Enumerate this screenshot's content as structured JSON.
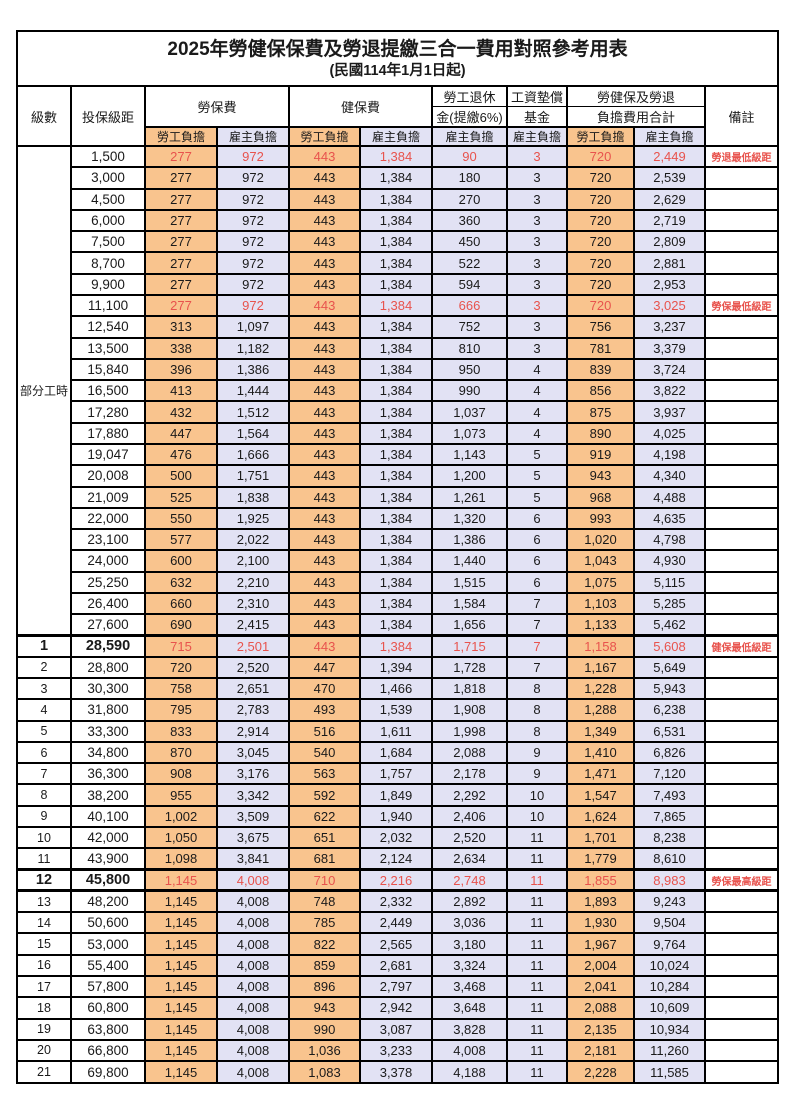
{
  "title": {
    "line1": "2025年勞健保保費及勞退提繳三合一費用對照參考用表",
    "line2": "(民國114年1月1日起)"
  },
  "header": {
    "level": "級數",
    "bracket": "投保級距",
    "labor": "勞保費",
    "health": "健保費",
    "pension_line1": "勞工退休",
    "pension_line2": "金(提繳6%)",
    "wage_fund_line1": "工資墊償",
    "wage_fund_line2": "基金",
    "total_line1": "勞健保及勞退",
    "total_line2": "負擔費用合計",
    "note": "備註",
    "employee": "勞工負擔",
    "employer": "雇主負擔"
  },
  "colors": {
    "employee_bg": "#F9C48E",
    "employer_bg": "#E2E2F4",
    "highlight_text": "#E8534D",
    "border": "#000000"
  },
  "part_time_label": "部分工時",
  "part_time_span": 23,
  "rows": [
    {
      "level": "",
      "bracket": "1,500",
      "labor_emp": "277",
      "labor_er": "972",
      "health_emp": "443",
      "health_er": "1,384",
      "pension_er": "90",
      "fund_er": "3",
      "total_emp": "720",
      "total_er": "2,449",
      "note": "勞退最低級距",
      "highlight": true
    },
    {
      "level": "",
      "bracket": "3,000",
      "labor_emp": "277",
      "labor_er": "972",
      "health_emp": "443",
      "health_er": "1,384",
      "pension_er": "180",
      "fund_er": "3",
      "total_emp": "720",
      "total_er": "2,539",
      "note": ""
    },
    {
      "level": "",
      "bracket": "4,500",
      "labor_emp": "277",
      "labor_er": "972",
      "health_emp": "443",
      "health_er": "1,384",
      "pension_er": "270",
      "fund_er": "3",
      "total_emp": "720",
      "total_er": "2,629",
      "note": ""
    },
    {
      "level": "",
      "bracket": "6,000",
      "labor_emp": "277",
      "labor_er": "972",
      "health_emp": "443",
      "health_er": "1,384",
      "pension_er": "360",
      "fund_er": "3",
      "total_emp": "720",
      "total_er": "2,719",
      "note": ""
    },
    {
      "level": "",
      "bracket": "7,500",
      "labor_emp": "277",
      "labor_er": "972",
      "health_emp": "443",
      "health_er": "1,384",
      "pension_er": "450",
      "fund_er": "3",
      "total_emp": "720",
      "total_er": "2,809",
      "note": ""
    },
    {
      "level": "",
      "bracket": "8,700",
      "labor_emp": "277",
      "labor_er": "972",
      "health_emp": "443",
      "health_er": "1,384",
      "pension_er": "522",
      "fund_er": "3",
      "total_emp": "720",
      "total_er": "2,881",
      "note": ""
    },
    {
      "level": "",
      "bracket": "9,900",
      "labor_emp": "277",
      "labor_er": "972",
      "health_emp": "443",
      "health_er": "1,384",
      "pension_er": "594",
      "fund_er": "3",
      "total_emp": "720",
      "total_er": "2,953",
      "note": ""
    },
    {
      "level": "",
      "bracket": "11,100",
      "labor_emp": "277",
      "labor_er": "972",
      "health_emp": "443",
      "health_er": "1,384",
      "pension_er": "666",
      "fund_er": "3",
      "total_emp": "720",
      "total_er": "3,025",
      "note": "勞保最低級距",
      "highlight": true
    },
    {
      "level": "",
      "bracket": "12,540",
      "labor_emp": "313",
      "labor_er": "1,097",
      "health_emp": "443",
      "health_er": "1,384",
      "pension_er": "752",
      "fund_er": "3",
      "total_emp": "756",
      "total_er": "3,237",
      "note": ""
    },
    {
      "level": "",
      "bracket": "13,500",
      "labor_emp": "338",
      "labor_er": "1,182",
      "health_emp": "443",
      "health_er": "1,384",
      "pension_er": "810",
      "fund_er": "3",
      "total_emp": "781",
      "total_er": "3,379",
      "note": ""
    },
    {
      "level": "",
      "bracket": "15,840",
      "labor_emp": "396",
      "labor_er": "1,386",
      "health_emp": "443",
      "health_er": "1,384",
      "pension_er": "950",
      "fund_er": "4",
      "total_emp": "839",
      "total_er": "3,724",
      "note": ""
    },
    {
      "level": "",
      "bracket": "16,500",
      "labor_emp": "413",
      "labor_er": "1,444",
      "health_emp": "443",
      "health_er": "1,384",
      "pension_er": "990",
      "fund_er": "4",
      "total_emp": "856",
      "total_er": "3,822",
      "note": ""
    },
    {
      "level": "",
      "bracket": "17,280",
      "labor_emp": "432",
      "labor_er": "1,512",
      "health_emp": "443",
      "health_er": "1,384",
      "pension_er": "1,037",
      "fund_er": "4",
      "total_emp": "875",
      "total_er": "3,937",
      "note": ""
    },
    {
      "level": "",
      "bracket": "17,880",
      "labor_emp": "447",
      "labor_er": "1,564",
      "health_emp": "443",
      "health_er": "1,384",
      "pension_er": "1,073",
      "fund_er": "4",
      "total_emp": "890",
      "total_er": "4,025",
      "note": ""
    },
    {
      "level": "",
      "bracket": "19,047",
      "labor_emp": "476",
      "labor_er": "1,666",
      "health_emp": "443",
      "health_er": "1,384",
      "pension_er": "1,143",
      "fund_er": "5",
      "total_emp": "919",
      "total_er": "4,198",
      "note": ""
    },
    {
      "level": "",
      "bracket": "20,008",
      "labor_emp": "500",
      "labor_er": "1,751",
      "health_emp": "443",
      "health_er": "1,384",
      "pension_er": "1,200",
      "fund_er": "5",
      "total_emp": "943",
      "total_er": "4,340",
      "note": ""
    },
    {
      "level": "",
      "bracket": "21,009",
      "labor_emp": "525",
      "labor_er": "1,838",
      "health_emp": "443",
      "health_er": "1,384",
      "pension_er": "1,261",
      "fund_er": "5",
      "total_emp": "968",
      "total_er": "4,488",
      "note": ""
    },
    {
      "level": "",
      "bracket": "22,000",
      "labor_emp": "550",
      "labor_er": "1,925",
      "health_emp": "443",
      "health_er": "1,384",
      "pension_er": "1,320",
      "fund_er": "6",
      "total_emp": "993",
      "total_er": "4,635",
      "note": ""
    },
    {
      "level": "",
      "bracket": "23,100",
      "labor_emp": "577",
      "labor_er": "2,022",
      "health_emp": "443",
      "health_er": "1,384",
      "pension_er": "1,386",
      "fund_er": "6",
      "total_emp": "1,020",
      "total_er": "4,798",
      "note": ""
    },
    {
      "level": "",
      "bracket": "24,000",
      "labor_emp": "600",
      "labor_er": "2,100",
      "health_emp": "443",
      "health_er": "1,384",
      "pension_er": "1,440",
      "fund_er": "6",
      "total_emp": "1,043",
      "total_er": "4,930",
      "note": ""
    },
    {
      "level": "",
      "bracket": "25,250",
      "labor_emp": "632",
      "labor_er": "2,210",
      "health_emp": "443",
      "health_er": "1,384",
      "pension_er": "1,515",
      "fund_er": "6",
      "total_emp": "1,075",
      "total_er": "5,115",
      "note": ""
    },
    {
      "level": "",
      "bracket": "26,400",
      "labor_emp": "660",
      "labor_er": "2,310",
      "health_emp": "443",
      "health_er": "1,384",
      "pension_er": "1,584",
      "fund_er": "7",
      "total_emp": "1,103",
      "total_er": "5,285",
      "note": ""
    },
    {
      "level": "",
      "bracket": "27,600",
      "labor_emp": "690",
      "labor_er": "2,415",
      "health_emp": "443",
      "health_er": "1,384",
      "pension_er": "1,656",
      "fund_er": "7",
      "total_emp": "1,133",
      "total_er": "5,462",
      "note": ""
    },
    {
      "level": "1",
      "bracket": "28,590",
      "labor_emp": "715",
      "labor_er": "2,501",
      "health_emp": "443",
      "health_er": "1,384",
      "pension_er": "1,715",
      "fund_er": "7",
      "total_emp": "1,158",
      "total_er": "5,608",
      "note": "健保最低級距",
      "highlight": true,
      "emph": true,
      "thick_top": true
    },
    {
      "level": "2",
      "bracket": "28,800",
      "labor_emp": "720",
      "labor_er": "2,520",
      "health_emp": "447",
      "health_er": "1,394",
      "pension_er": "1,728",
      "fund_er": "7",
      "total_emp": "1,167",
      "total_er": "5,649",
      "note": ""
    },
    {
      "level": "3",
      "bracket": "30,300",
      "labor_emp": "758",
      "labor_er": "2,651",
      "health_emp": "470",
      "health_er": "1,466",
      "pension_er": "1,818",
      "fund_er": "8",
      "total_emp": "1,228",
      "total_er": "5,943",
      "note": ""
    },
    {
      "level": "4",
      "bracket": "31,800",
      "labor_emp": "795",
      "labor_er": "2,783",
      "health_emp": "493",
      "health_er": "1,539",
      "pension_er": "1,908",
      "fund_er": "8",
      "total_emp": "1,288",
      "total_er": "6,238",
      "note": ""
    },
    {
      "level": "5",
      "bracket": "33,300",
      "labor_emp": "833",
      "labor_er": "2,914",
      "health_emp": "516",
      "health_er": "1,611",
      "pension_er": "1,998",
      "fund_er": "8",
      "total_emp": "1,349",
      "total_er": "6,531",
      "note": ""
    },
    {
      "level": "6",
      "bracket": "34,800",
      "labor_emp": "870",
      "labor_er": "3,045",
      "health_emp": "540",
      "health_er": "1,684",
      "pension_er": "2,088",
      "fund_er": "9",
      "total_emp": "1,410",
      "total_er": "6,826",
      "note": ""
    },
    {
      "level": "7",
      "bracket": "36,300",
      "labor_emp": "908",
      "labor_er": "3,176",
      "health_emp": "563",
      "health_er": "1,757",
      "pension_er": "2,178",
      "fund_er": "9",
      "total_emp": "1,471",
      "total_er": "7,120",
      "note": ""
    },
    {
      "level": "8",
      "bracket": "38,200",
      "labor_emp": "955",
      "labor_er": "3,342",
      "health_emp": "592",
      "health_er": "1,849",
      "pension_er": "2,292",
      "fund_er": "10",
      "total_emp": "1,547",
      "total_er": "7,493",
      "note": ""
    },
    {
      "level": "9",
      "bracket": "40,100",
      "labor_emp": "1,002",
      "labor_er": "3,509",
      "health_emp": "622",
      "health_er": "1,940",
      "pension_er": "2,406",
      "fund_er": "10",
      "total_emp": "1,624",
      "total_er": "7,865",
      "note": ""
    },
    {
      "level": "10",
      "bracket": "42,000",
      "labor_emp": "1,050",
      "labor_er": "3,675",
      "health_emp": "651",
      "health_er": "2,032",
      "pension_er": "2,520",
      "fund_er": "11",
      "total_emp": "1,701",
      "total_er": "8,238",
      "note": ""
    },
    {
      "level": "11",
      "bracket": "43,900",
      "labor_emp": "1,098",
      "labor_er": "3,841",
      "health_emp": "681",
      "health_er": "2,124",
      "pension_er": "2,634",
      "fund_er": "11",
      "total_emp": "1,779",
      "total_er": "8,610",
      "note": ""
    },
    {
      "level": "12",
      "bracket": "45,800",
      "labor_emp": "1,145",
      "labor_er": "4,008",
      "health_emp": "710",
      "health_er": "2,216",
      "pension_er": "2,748",
      "fund_er": "11",
      "total_emp": "1,855",
      "total_er": "8,983",
      "note": "勞保最高級距",
      "highlight": true,
      "emph": true,
      "thick_top": true,
      "thick_bottom": true
    },
    {
      "level": "13",
      "bracket": "48,200",
      "labor_emp": "1,145",
      "labor_er": "4,008",
      "health_emp": "748",
      "health_er": "2,332",
      "pension_er": "2,892",
      "fund_er": "11",
      "total_emp": "1,893",
      "total_er": "9,243",
      "note": ""
    },
    {
      "level": "14",
      "bracket": "50,600",
      "labor_emp": "1,145",
      "labor_er": "4,008",
      "health_emp": "785",
      "health_er": "2,449",
      "pension_er": "3,036",
      "fund_er": "11",
      "total_emp": "1,930",
      "total_er": "9,504",
      "note": ""
    },
    {
      "level": "15",
      "bracket": "53,000",
      "labor_emp": "1,145",
      "labor_er": "4,008",
      "health_emp": "822",
      "health_er": "2,565",
      "pension_er": "3,180",
      "fund_er": "11",
      "total_emp": "1,967",
      "total_er": "9,764",
      "note": ""
    },
    {
      "level": "16",
      "bracket": "55,400",
      "labor_emp": "1,145",
      "labor_er": "4,008",
      "health_emp": "859",
      "health_er": "2,681",
      "pension_er": "3,324",
      "fund_er": "11",
      "total_emp": "2,004",
      "total_er": "10,024",
      "note": ""
    },
    {
      "level": "17",
      "bracket": "57,800",
      "labor_emp": "1,145",
      "labor_er": "4,008",
      "health_emp": "896",
      "health_er": "2,797",
      "pension_er": "3,468",
      "fund_er": "11",
      "total_emp": "2,041",
      "total_er": "10,284",
      "note": ""
    },
    {
      "level": "18",
      "bracket": "60,800",
      "labor_emp": "1,145",
      "labor_er": "4,008",
      "health_emp": "943",
      "health_er": "2,942",
      "pension_er": "3,648",
      "fund_er": "11",
      "total_emp": "2,088",
      "total_er": "10,609",
      "note": ""
    },
    {
      "level": "19",
      "bracket": "63,800",
      "labor_emp": "1,145",
      "labor_er": "4,008",
      "health_emp": "990",
      "health_er": "3,087",
      "pension_er": "3,828",
      "fund_er": "11",
      "total_emp": "2,135",
      "total_er": "10,934",
      "note": ""
    },
    {
      "level": "20",
      "bracket": "66,800",
      "labor_emp": "1,145",
      "labor_er": "4,008",
      "health_emp": "1,036",
      "health_er": "3,233",
      "pension_er": "4,008",
      "fund_er": "11",
      "total_emp": "2,181",
      "total_er": "11,260",
      "note": ""
    },
    {
      "level": "21",
      "bracket": "69,800",
      "labor_emp": "1,145",
      "labor_er": "4,008",
      "health_emp": "1,083",
      "health_er": "3,378",
      "pension_er": "4,188",
      "fund_er": "11",
      "total_emp": "2,228",
      "total_er": "11,585",
      "note": ""
    }
  ]
}
